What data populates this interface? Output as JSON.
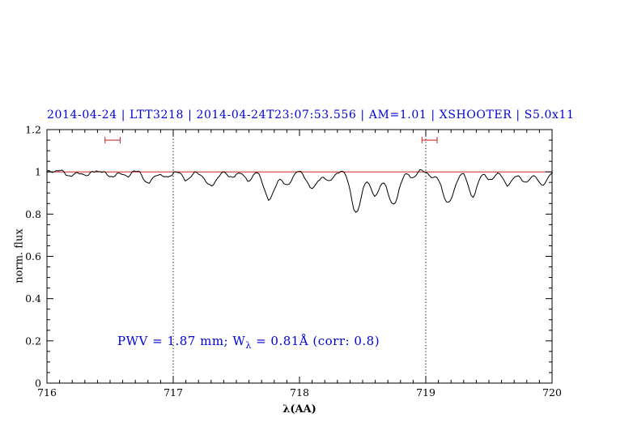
{
  "chart_data": {
    "type": "line",
    "title": "2014-04-24 | LTT3218 | 2014-04-24T23:07:53.556 | AM=1.01 | XSHOOTER | S5.0x11",
    "title_color": "#0000dd",
    "xlabel": "λ(AA)",
    "ylabel": "norm. flux",
    "xlim": [
      716,
      720
    ],
    "ylim": [
      0,
      1.2
    ],
    "x_ticks": [
      716,
      717,
      718,
      719,
      720
    ],
    "x_tick_labels": [
      "716",
      "717",
      "718",
      "719",
      "720"
    ],
    "x_minor_step": 0.1,
    "y_ticks": [
      0,
      0.2,
      0.4,
      0.6,
      0.8,
      1,
      1.2
    ],
    "y_tick_labels": [
      "0",
      "0.2",
      "0.4",
      "0.6",
      "0.8",
      "1",
      "1.2"
    ],
    "y_minor_step": 0.05,
    "grid": "off",
    "legend": "none",
    "series_color": "#000000",
    "continuum": 1.0,
    "continuum_line": {
      "y": 1.0,
      "color": "#cc0000"
    },
    "vlines": {
      "x": [
        717,
        719
      ],
      "style": "dotted",
      "color": "#000000"
    },
    "marker_color": "#cc3333",
    "range_markers": [
      {
        "x_start": 716.46,
        "x_end": 716.58,
        "y": 1.15
      },
      {
        "x_start": 718.97,
        "x_end": 719.09,
        "y": 1.15
      }
    ],
    "sample_step": 0.015,
    "noise": {
      "jitter": 0.003,
      "components": [
        {
          "amp": 0.005,
          "freq": 19.7,
          "phase": 0.3
        },
        {
          "amp": 0.004,
          "freq": 53.1,
          "phase": 1.7
        },
        {
          "amp": 0.003,
          "freq": 113.0,
          "phase": 0.9
        }
      ]
    },
    "absorption_lines": [
      {
        "center": 716.18,
        "depth": 0.018,
        "sigma": 0.03
      },
      {
        "center": 716.32,
        "depth": 0.015,
        "sigma": 0.03
      },
      {
        "center": 716.5,
        "depth": 0.022,
        "sigma": 0.03
      },
      {
        "center": 716.63,
        "depth": 0.018,
        "sigma": 0.03
      },
      {
        "center": 716.8,
        "depth": 0.055,
        "sigma": 0.035
      },
      {
        "center": 716.95,
        "depth": 0.028,
        "sigma": 0.03
      },
      {
        "center": 717.1,
        "depth": 0.04,
        "sigma": 0.032
      },
      {
        "center": 717.3,
        "depth": 0.07,
        "sigma": 0.04
      },
      {
        "center": 717.45,
        "depth": 0.025,
        "sigma": 0.03
      },
      {
        "center": 717.6,
        "depth": 0.04,
        "sigma": 0.03
      },
      {
        "center": 717.76,
        "depth": 0.135,
        "sigma": 0.04
      },
      {
        "center": 717.9,
        "depth": 0.065,
        "sigma": 0.033
      },
      {
        "center": 718.1,
        "depth": 0.075,
        "sigma": 0.042
      },
      {
        "center": 718.24,
        "depth": 0.045,
        "sigma": 0.03
      },
      {
        "center": 718.45,
        "depth": 0.19,
        "sigma": 0.04
      },
      {
        "center": 718.6,
        "depth": 0.12,
        "sigma": 0.035
      },
      {
        "center": 718.74,
        "depth": 0.155,
        "sigma": 0.042
      },
      {
        "center": 718.9,
        "depth": 0.03,
        "sigma": 0.025
      },
      {
        "center": 719.05,
        "depth": 0.025,
        "sigma": 0.025
      },
      {
        "center": 719.18,
        "depth": 0.145,
        "sigma": 0.045
      },
      {
        "center": 719.37,
        "depth": 0.115,
        "sigma": 0.035
      },
      {
        "center": 719.52,
        "depth": 0.04,
        "sigma": 0.028
      },
      {
        "center": 719.65,
        "depth": 0.07,
        "sigma": 0.033
      },
      {
        "center": 719.79,
        "depth": 0.05,
        "sigma": 0.03
      },
      {
        "center": 719.92,
        "depth": 0.07,
        "sigma": 0.035
      }
    ],
    "annotation": {
      "prefix": "PWV = 1.87 mm; W",
      "sub": "λ",
      "suffix": " = 0.81Å (corr: 0.8)",
      "color": "#0000dd",
      "x": 716.56,
      "y": 0.2
    }
  }
}
